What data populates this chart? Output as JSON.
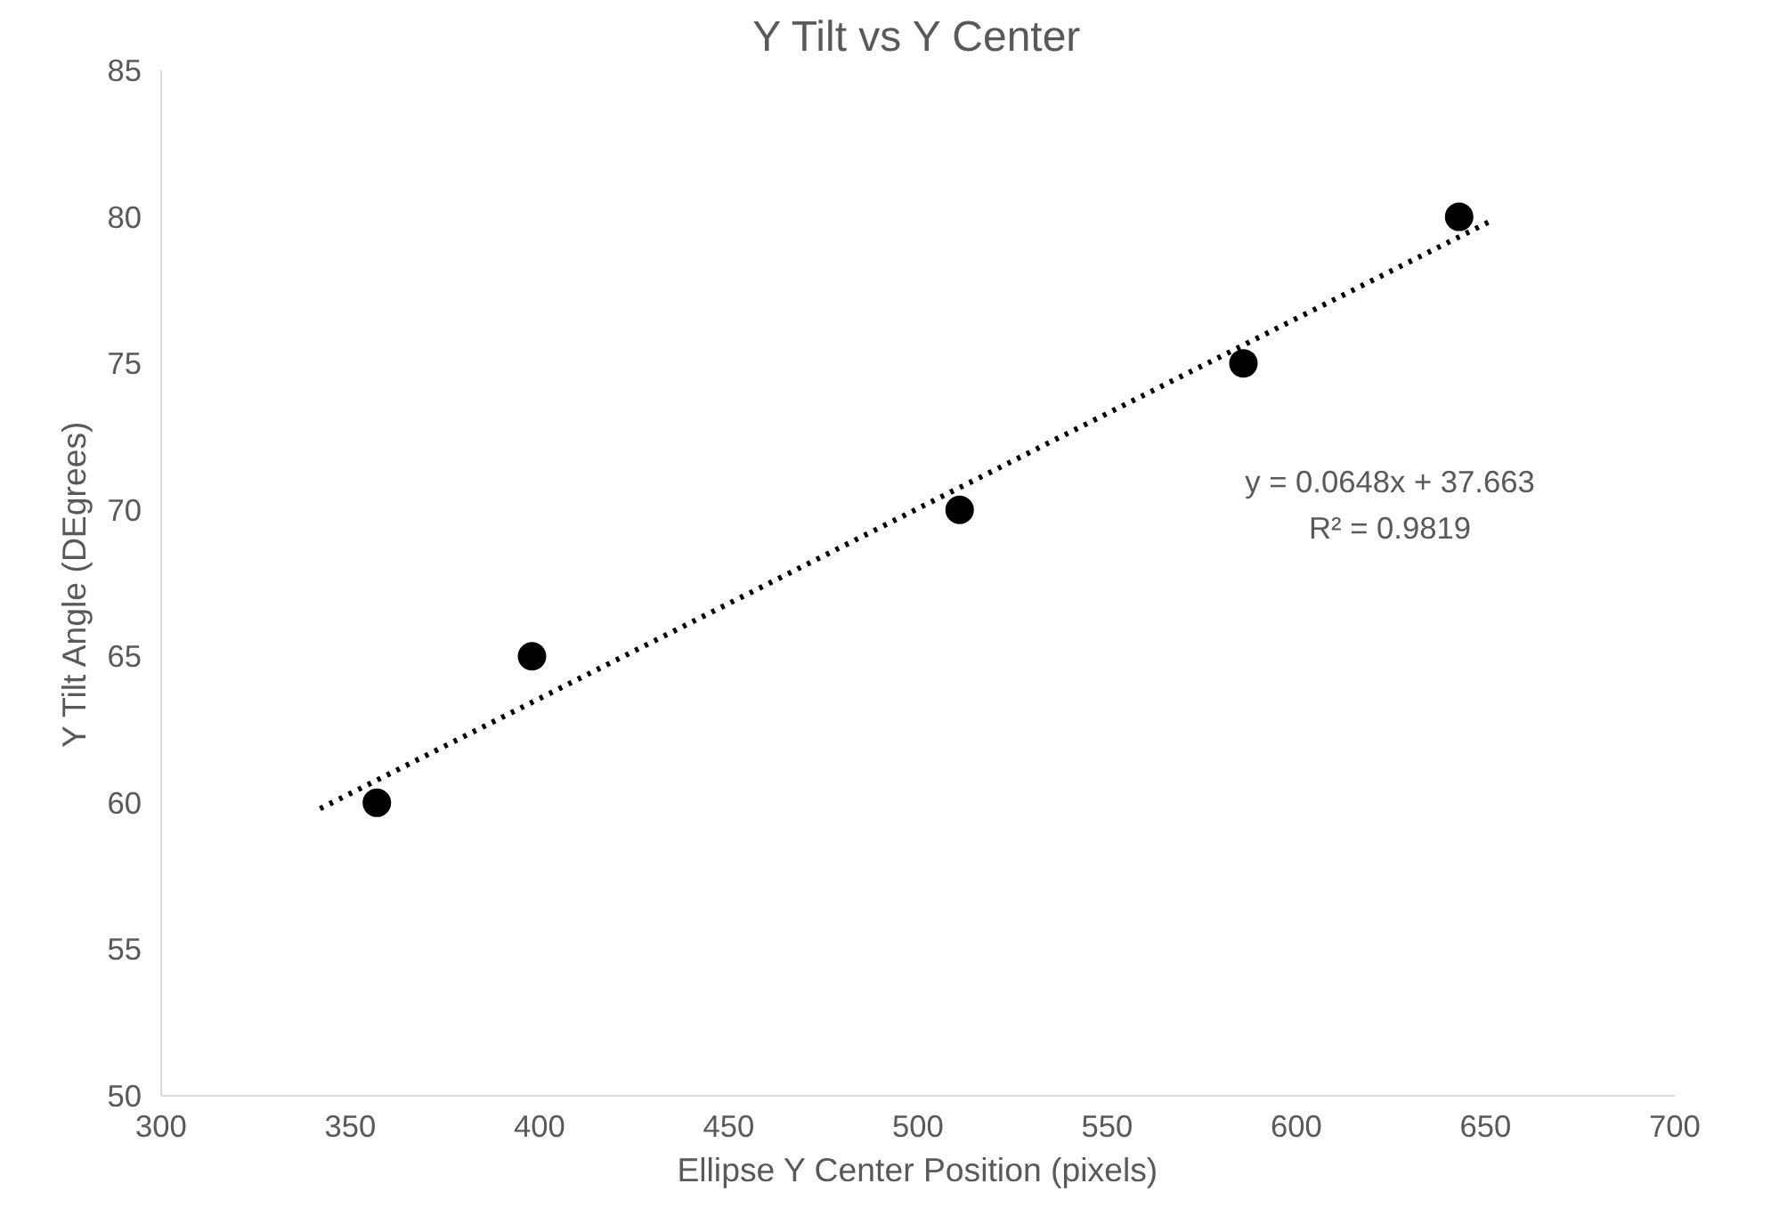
{
  "chart_data": {
    "type": "scatter",
    "title": "Y Tilt vs Y Center",
    "xlabel": "Ellipse Y Center Position (pixels)",
    "ylabel": "Y Tilt Angle (DEgrees)",
    "series": [
      {
        "color": "#000000",
        "marker": "circle",
        "x": [
          357,
          398,
          511,
          586,
          643
        ],
        "values": [
          60,
          65,
          70,
          75,
          80
        ]
      },
      {
        "type": "line",
        "color": "#000000",
        "line_style": "dotted",
        "x": [
          342,
          652
        ],
        "values": [
          59.8,
          79.9
        ]
      }
    ],
    "annotations": [
      "y = 0.0648x + 37.663",
      "R² = 0.9819"
    ],
    "xlim": [
      300,
      700
    ],
    "xticks": [
      300,
      350,
      400,
      450,
      500,
      550,
      600,
      650,
      700
    ],
    "ylim": [
      50,
      85
    ],
    "yticks": [
      50,
      55,
      60,
      65,
      70,
      75,
      80,
      85
    ],
    "grid": false
  }
}
